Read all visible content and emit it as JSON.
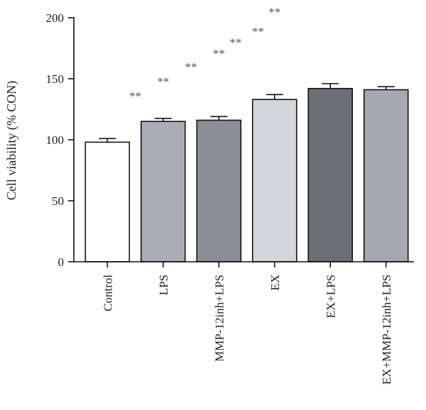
{
  "chart_data": {
    "type": "bar",
    "title": "",
    "xlabel": "",
    "ylabel": "Cell viability (% CON)",
    "ylim": [
      0,
      200
    ],
    "yticks": [
      0,
      50,
      100,
      150,
      200
    ],
    "grid": false,
    "legend": "none",
    "categories": [
      "Control",
      "LPS",
      "MMP-12inh+LPS",
      "EX",
      "EX+LPS",
      "EX+MMP-12inh+LPS"
    ],
    "values": [
      98,
      115,
      116,
      133,
      142,
      141
    ],
    "errors": [
      3,
      2.5,
      3,
      4,
      4,
      2.5
    ],
    "colors": [
      "#ffffff",
      "#a9aeb6",
      "#8a8f95",
      "#d3d7dd",
      "#6b7077",
      "#a5aab1"
    ],
    "annotations": [
      {
        "text": "**",
        "x": 0.5,
        "y": 136
      },
      {
        "text": "**",
        "x": 1.0,
        "y": 148
      },
      {
        "text": "**",
        "x": 1.5,
        "y": 160
      },
      {
        "text": "**",
        "x": 2.0,
        "y": 171
      },
      {
        "text": "**",
        "x": 2.3,
        "y": 180
      },
      {
        "text": "**",
        "x": 2.7,
        "y": 189
      },
      {
        "text": "**",
        "x": 3.0,
        "y": 205
      }
    ]
  }
}
